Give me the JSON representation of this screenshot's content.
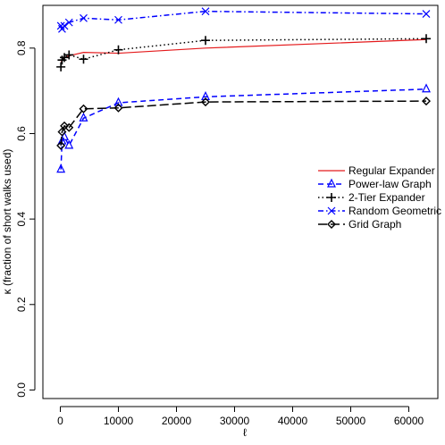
{
  "chart_data": {
    "type": "line",
    "title": "",
    "xlabel": "ℓ",
    "ylabel": "κ (fraction of short walks used)",
    "xlim": [
      -3000,
      65000
    ],
    "ylim": [
      -0.02,
      0.9
    ],
    "xticks": [
      0,
      10000,
      20000,
      30000,
      40000,
      50000,
      60000
    ],
    "xtick_labels": [
      "0",
      "10000",
      "20000",
      "30000",
      "40000",
      "50000",
      "60000"
    ],
    "yticks": [
      0.0,
      0.2,
      0.4,
      0.6,
      0.8
    ],
    "ytick_labels": [
      "0.0",
      "0.2",
      "0.4",
      "0.6",
      "0.8"
    ],
    "grid": false,
    "legend_position": "right",
    "series": [
      {
        "name": "Regular Expander",
        "color": "#e41a1c",
        "dash": "solid",
        "marker": "none",
        "x": [
          100,
          300,
          700,
          1500,
          4000,
          10000,
          25000,
          63000
        ],
        "y": [
          0.765,
          0.772,
          0.778,
          0.782,
          0.79,
          0.788,
          0.8,
          0.82
        ]
      },
      {
        "name": "Power-law Graph",
        "color": "#0000ff",
        "dash": "dashed",
        "marker": "triangle",
        "x": [
          100,
          300,
          700,
          1500,
          4000,
          10000,
          25000,
          63000
        ],
        "y": [
          0.516,
          0.582,
          0.592,
          0.572,
          0.636,
          0.672,
          0.686,
          0.704
        ]
      },
      {
        "name": "2-Tier Expander",
        "color": "#000000",
        "dash": "dotted",
        "marker": "plus",
        "x": [
          100,
          300,
          700,
          1500,
          4000,
          10000,
          25000,
          63000
        ],
        "y": [
          0.756,
          0.772,
          0.778,
          0.784,
          0.774,
          0.796,
          0.818,
          0.822
        ]
      },
      {
        "name": "Random Geometric",
        "color": "#0000ff",
        "dash": "dashdot",
        "marker": "cross",
        "x": [
          100,
          300,
          700,
          1500,
          4000,
          10000,
          25000,
          63000
        ],
        "y": [
          0.852,
          0.845,
          0.852,
          0.86,
          0.87,
          0.866,
          0.886,
          0.88
        ]
      },
      {
        "name": "Grid Graph",
        "color": "#000000",
        "dash": "longdash",
        "marker": "diamond",
        "x": [
          100,
          300,
          700,
          1500,
          4000,
          10000,
          25000,
          63000
        ],
        "y": [
          0.572,
          0.604,
          0.618,
          0.614,
          0.658,
          0.66,
          0.674,
          0.676
        ]
      }
    ]
  }
}
